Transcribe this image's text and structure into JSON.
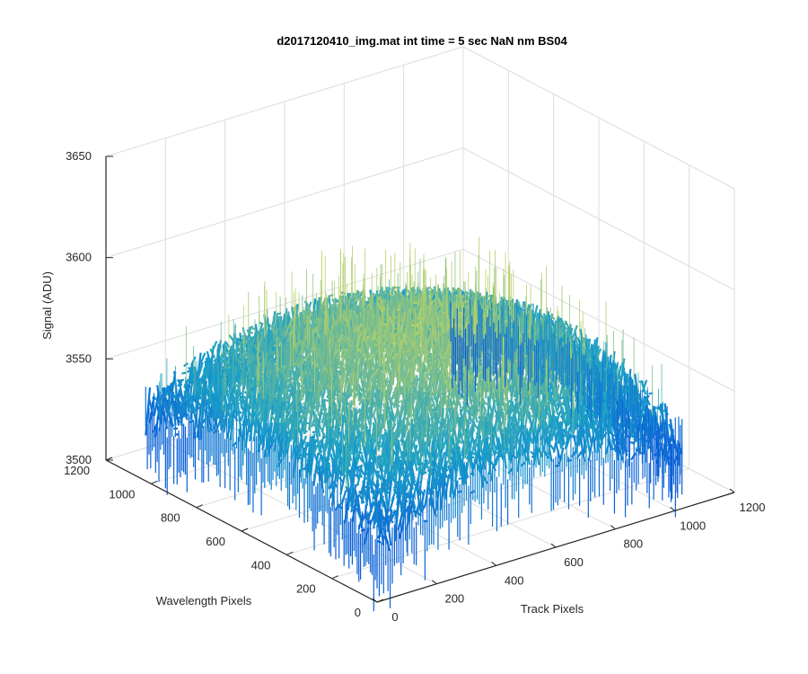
{
  "chart_data": {
    "type": "surface",
    "title": "d2017120410_img.mat int time = 5 sec  NaN nm BS04",
    "xlabel": "Track Pixels",
    "ylabel": "Wavelength Pixels",
    "zlabel": "Signal (ADU)",
    "x_ticks": [
      "0",
      "200",
      "400",
      "600",
      "800",
      "1000",
      "1200"
    ],
    "y_ticks": [
      "0",
      "200",
      "400",
      "600",
      "800",
      "1000",
      "1200"
    ],
    "z_ticks": [
      "3500",
      "3550",
      "3600",
      "3650"
    ],
    "xlim": [
      0,
      1200
    ],
    "ylim": [
      0,
      1200
    ],
    "zlim": [
      3500,
      3650
    ],
    "data_extent": {
      "x": [
        0,
        1024
      ],
      "y": [
        0,
        1024
      ]
    },
    "surface_shape": "dome",
    "baseline_signal": 3535,
    "peak_signal": 3575,
    "noise_spread": 25,
    "grid": true,
    "colormap": "parula",
    "colors": {
      "low": "#0a5fd8",
      "mid": "#1aa0c8",
      "high": "#b5d06a",
      "axis": "#262626",
      "grid": "#dcdcdc"
    }
  }
}
